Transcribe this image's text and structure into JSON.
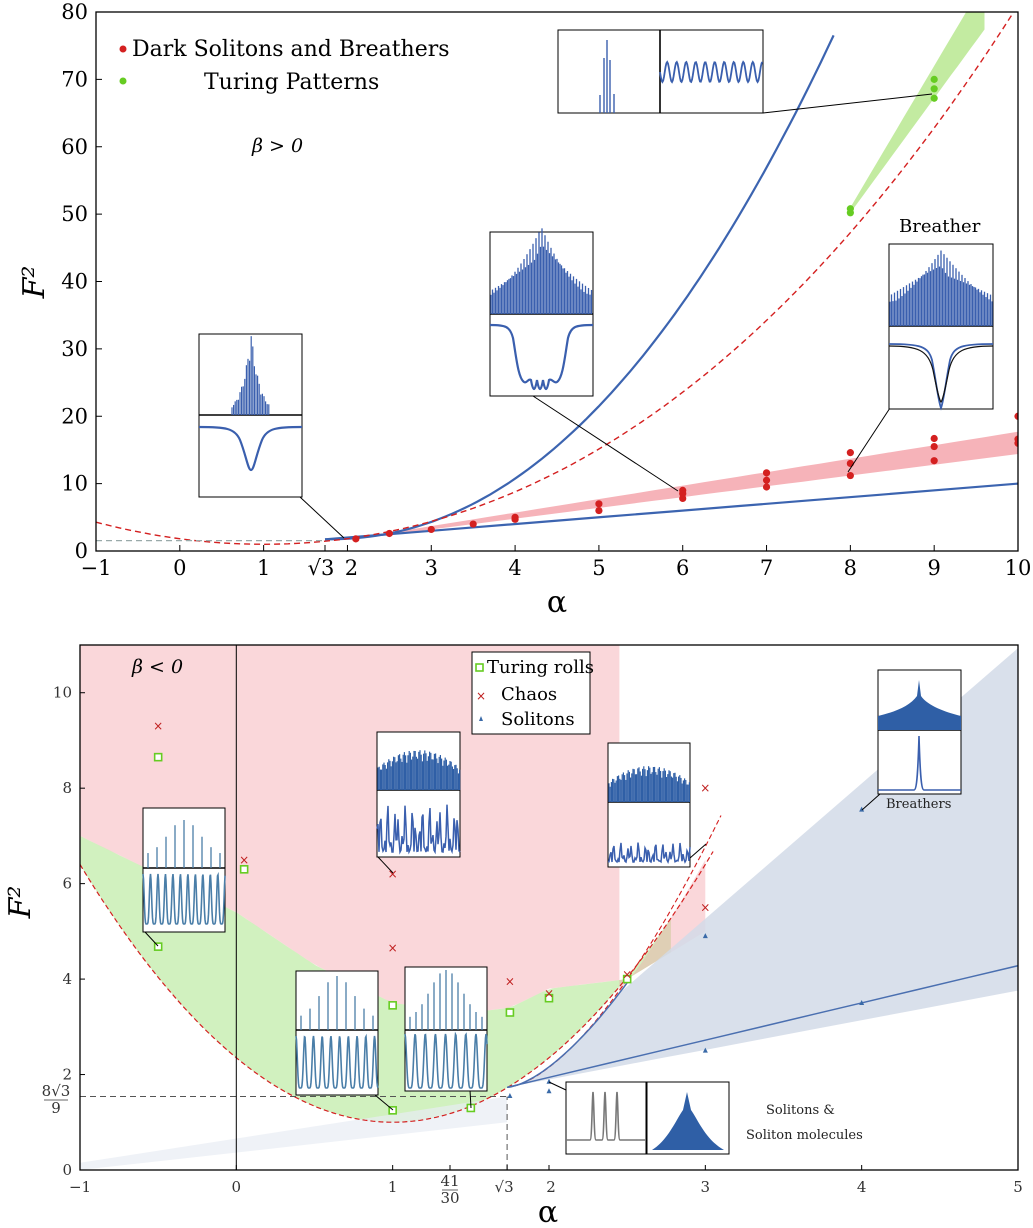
{
  "colors": {
    "blue": "#3c64b0",
    "red": "#d42020",
    "green": "#66cc22",
    "pink_fill": "#f4a0a8",
    "light_green_fill": "#ccf0b8",
    "steel_fill": "#d2dbe8",
    "inset_blue": "#3a5fae"
  },
  "chart_data": [
    {
      "type": "scatter",
      "xlabel": "α",
      "ylabel": "F²",
      "xlim": [
        -1,
        10
      ],
      "ylim": [
        0,
        80
      ],
      "x_ticks": [
        "−1",
        "0",
        "1",
        "√3",
        "2",
        "3",
        "4",
        "5",
        "6",
        "7",
        "8",
        "9",
        "10"
      ],
      "y_ticks": [
        "0",
        "10",
        "20",
        "30",
        "40",
        "50",
        "60",
        "70",
        "80"
      ],
      "annotations": {
        "regime": "β > 0",
        "breather": "Breather"
      },
      "legend": {
        "placement": "top-left",
        "entries": [
          "Dark Solitons and Breathers",
          "Turing Patterns"
        ]
      },
      "series": [
        {
          "name": "Dark Solitons and Breathers",
          "points": [
            [
              2.1,
              1.8
            ],
            [
              2.5,
              2.6
            ],
            [
              3,
              3.2
            ],
            [
              3.5,
              4.0
            ],
            [
              4,
              4.7
            ],
            [
              4,
              5.0
            ],
            [
              5,
              6.0
            ],
            [
              5,
              7.0
            ],
            [
              6,
              7.8
            ],
            [
              6,
              8.5
            ],
            [
              6,
              9.0
            ],
            [
              7,
              9.5
            ],
            [
              7,
              10.5
            ],
            [
              7,
              11.6
            ],
            [
              8,
              11.2
            ],
            [
              8,
              13.0
            ],
            [
              8,
              14.6
            ],
            [
              9,
              13.4
            ],
            [
              9,
              15.5
            ],
            [
              9,
              16.7
            ],
            [
              10,
              16.0
            ],
            [
              10,
              16.6
            ],
            [
              10,
              20.0
            ]
          ]
        },
        {
          "name": "Turing Patterns",
          "points": [
            [
              8,
              50.2
            ],
            [
              8,
              50.8
            ],
            [
              9,
              67.2
            ],
            [
              9,
              68.6
            ],
            [
              9,
              70.0
            ]
          ]
        }
      ]
    },
    {
      "type": "scatter",
      "xlabel": "α",
      "ylabel": "F²",
      "xlim": [
        -1,
        5
      ],
      "ylim": [
        0,
        11
      ],
      "x_ticks": [
        "−1",
        "0",
        "1",
        "41/30",
        "√3",
        "2",
        "3",
        "4",
        "5"
      ],
      "y_ticks": [
        "0",
        "2",
        "4",
        "6",
        "8",
        "10"
      ],
      "y_extra_tick": {
        "numerator": "8√3",
        "denominator": "9"
      },
      "annotations": {
        "regime": "β < 0",
        "breathers": "Breathers",
        "solitons_line1": "Solitons &",
        "solitons_line2": "Soliton molecules"
      },
      "legend": {
        "placement": "top-center",
        "entries": [
          "Turing rolls",
          "Chaos",
          "Solitons"
        ]
      },
      "series": [
        {
          "name": "Turing rolls",
          "points": [
            [
              -0.5,
              8.65
            ],
            [
              -0.5,
              4.68
            ],
            [
              0.05,
              6.3
            ],
            [
              1,
              3.45
            ],
            [
              1,
              1.25
            ],
            [
              1.5,
              1.3
            ],
            [
              1.75,
              3.3
            ],
            [
              2,
              3.6
            ],
            [
              2.5,
              4.0
            ]
          ]
        },
        {
          "name": "Chaos",
          "points": [
            [
              -0.5,
              9.3
            ],
            [
              0.05,
              6.5
            ],
            [
              1,
              6.2
            ],
            [
              1,
              4.65
            ],
            [
              1.75,
              3.95
            ],
            [
              2,
              3.7
            ],
            [
              2.5,
              4.1
            ],
            [
              3,
              8.0
            ],
            [
              3,
              5.5
            ]
          ]
        },
        {
          "name": "Solitons",
          "points": [
            [
              1.75,
              1.55
            ],
            [
              2,
              1.85
            ],
            [
              2,
              1.65
            ],
            [
              3,
              4.9
            ],
            [
              3,
              2.5
            ],
            [
              4,
              3.5
            ],
            [
              4,
              7.55
            ]
          ]
        }
      ]
    }
  ]
}
